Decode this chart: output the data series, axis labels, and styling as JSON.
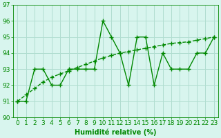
{
  "x": [
    0,
    1,
    2,
    3,
    4,
    5,
    6,
    7,
    8,
    9,
    10,
    11,
    12,
    13,
    14,
    15,
    16,
    17,
    18,
    19,
    20,
    21,
    22,
    23
  ],
  "y_main": [
    91,
    91,
    93,
    93,
    92,
    92,
    93,
    93,
    93,
    93,
    96,
    95,
    94,
    92,
    95,
    95,
    92,
    94,
    93,
    93,
    93,
    94,
    94,
    95
  ],
  "y_trend": [
    91,
    91.4,
    91.8,
    92.2,
    92.5,
    92.7,
    92.9,
    93.1,
    93.3,
    93.5,
    93.7,
    93.85,
    94.0,
    94.1,
    94.2,
    94.3,
    94.4,
    94.5,
    94.6,
    94.65,
    94.7,
    94.8,
    94.9,
    95.0
  ],
  "line_color": "#008800",
  "bg_color": "#d8f5ee",
  "grid_color": "#b0ddd0",
  "xlabel": "Humidité relative (%)",
  "ylim": [
    90,
    97
  ],
  "xlim": [
    -0.5,
    23.5
  ],
  "yticks": [
    90,
    91,
    92,
    93,
    94,
    95,
    96,
    97
  ],
  "xticks": [
    0,
    1,
    2,
    3,
    4,
    5,
    6,
    7,
    8,
    9,
    10,
    11,
    12,
    13,
    14,
    15,
    16,
    17,
    18,
    19,
    20,
    21,
    22,
    23
  ],
  "marker": "+",
  "line_width": 1.0,
  "marker_size": 4,
  "xlabel_fontsize": 7,
  "tick_fontsize": 6.5
}
